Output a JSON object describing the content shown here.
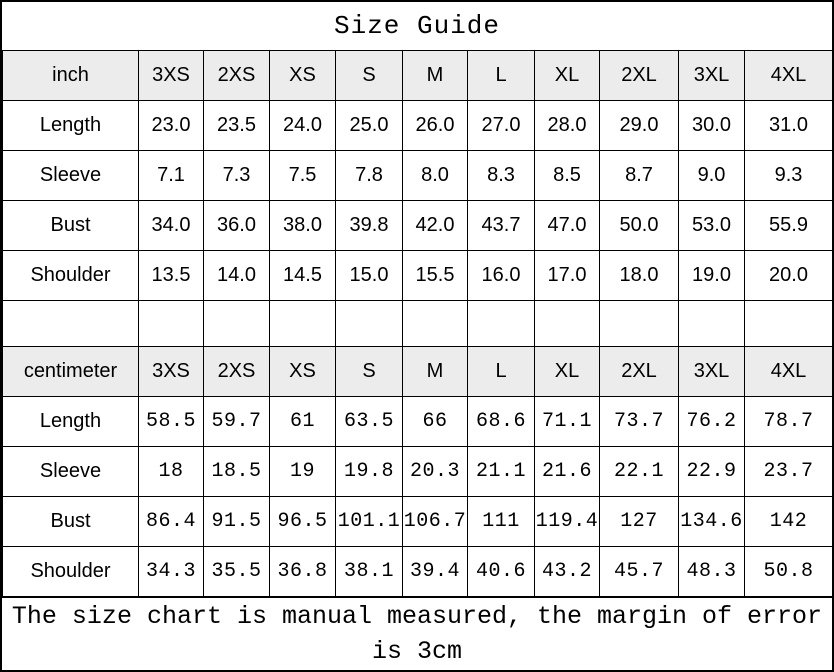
{
  "colors": {
    "header_bg": "#ececec",
    "border": "#000000",
    "background": "#ffffff",
    "text": "#000000"
  },
  "chart_data": {
    "type": "table",
    "title": "Size Guide",
    "sizes": [
      "3XS",
      "2XS",
      "XS",
      "S",
      "M",
      "L",
      "XL",
      "2XL",
      "3XL",
      "4XL"
    ],
    "sections": [
      {
        "unit": "inch",
        "rows": [
          {
            "label": "Length",
            "values": [
              "23.0",
              "23.5",
              "24.0",
              "25.0",
              "26.0",
              "27.0",
              "28.0",
              "29.0",
              "30.0",
              "31.0"
            ]
          },
          {
            "label": "Sleeve",
            "values": [
              "7.1",
              "7.3",
              "7.5",
              "7.8",
              "8.0",
              "8.3",
              "8.5",
              "8.7",
              "9.0",
              "9.3"
            ]
          },
          {
            "label": "Bust",
            "values": [
              "34.0",
              "36.0",
              "38.0",
              "39.8",
              "42.0",
              "43.7",
              "47.0",
              "50.0",
              "53.0",
              "55.9"
            ]
          },
          {
            "label": "Shoulder",
            "values": [
              "13.5",
              "14.0",
              "14.5",
              "15.0",
              "15.5",
              "16.0",
              "17.0",
              "18.0",
              "19.0",
              "20.0"
            ]
          }
        ]
      },
      {
        "unit": "centimeter",
        "rows": [
          {
            "label": "Length",
            "values": [
              "58.5",
              "59.7",
              "61",
              "63.5",
              "66",
              "68.6",
              "71.1",
              "73.7",
              "76.2",
              "78.7"
            ]
          },
          {
            "label": "Sleeve",
            "values": [
              "18",
              "18.5",
              "19",
              "19.8",
              "20.3",
              "21.1",
              "21.6",
              "22.1",
              "22.9",
              "23.7"
            ]
          },
          {
            "label": "Bust",
            "values": [
              "86.4",
              "91.5",
              "96.5",
              "101.1",
              "106.7",
              "111",
              "119.4",
              "127",
              "134.6",
              "142"
            ]
          },
          {
            "label": "Shoulder",
            "values": [
              "34.3",
              "35.5",
              "36.8",
              "38.1",
              "39.4",
              "40.6",
              "43.2",
              "45.7",
              "48.3",
              "50.8"
            ]
          }
        ]
      }
    ],
    "footer_text": "The size chart is manual measured, the margin of error is 3cm",
    "footer_lines": [
      "The size chart is manual measured, the margin of error",
      "is 3cm"
    ]
  }
}
